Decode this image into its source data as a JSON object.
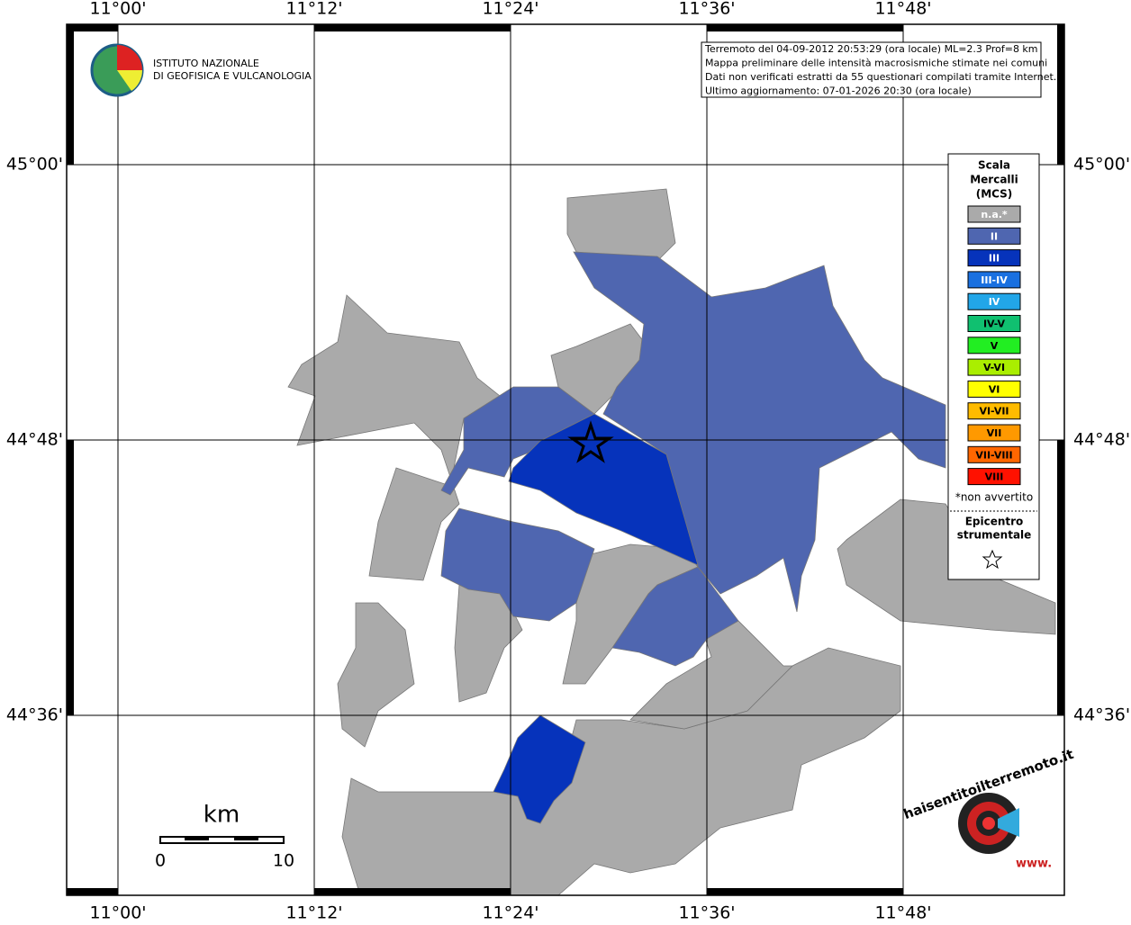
{
  "map": {
    "lon_labels": [
      "11°00'",
      "11°12'",
      "11°24'",
      "11°36'",
      "11°48'"
    ],
    "lat_labels": [
      "45°00'",
      "44°48'",
      "44°36'"
    ],
    "logo": {
      "line1": "ISTITUTO NAZIONALE",
      "line2": "DI GEOFISICA E VULCANOLOGIA"
    },
    "info": [
      "Terremoto del 04-09-2012 20:53:29 (ora locale) ML=2.3 Prof=8 km",
      "Mappa preliminare delle intensità macrosismiche stimate nei comuni",
      "Dati non verificati estratti da 55 questionari compilati tramite Internet.",
      "Ultimo aggiornamento: 07-01-2026 20:30 (ora locale)"
    ],
    "legend": {
      "title": [
        "Scala",
        "Mercalli",
        "(MCS)"
      ],
      "items": [
        {
          "label": "n.a.*",
          "color": "#aaaaaa"
        },
        {
          "label": "II",
          "color": "#4f66b0"
        },
        {
          "label": "III",
          "color": "#0633bb"
        },
        {
          "label": "III-IV",
          "color": "#1a70e0"
        },
        {
          "label": "IV",
          "color": "#22a6e8"
        },
        {
          "label": "IV-V",
          "color": "#10c070"
        },
        {
          "label": "V",
          "color": "#22ee22"
        },
        {
          "label": "V-VI",
          "color": "#aaee00"
        },
        {
          "label": "VI",
          "color": "#ffff00"
        },
        {
          "label": "VI-VII",
          "color": "#ffbb00"
        },
        {
          "label": "VII",
          "color": "#ff9900"
        },
        {
          "label": "VII-VIII",
          "color": "#ff6600"
        },
        {
          "label": "VIII",
          "color": "#ff1100"
        }
      ],
      "note": "*non avvertito",
      "epicenter": [
        "Epicentro",
        "strumentale"
      ]
    },
    "scale": {
      "unit": "km",
      "start": "0",
      "end": "10"
    },
    "site": {
      "name": "haisentitoilterremoto.it",
      "www": "www."
    }
  }
}
